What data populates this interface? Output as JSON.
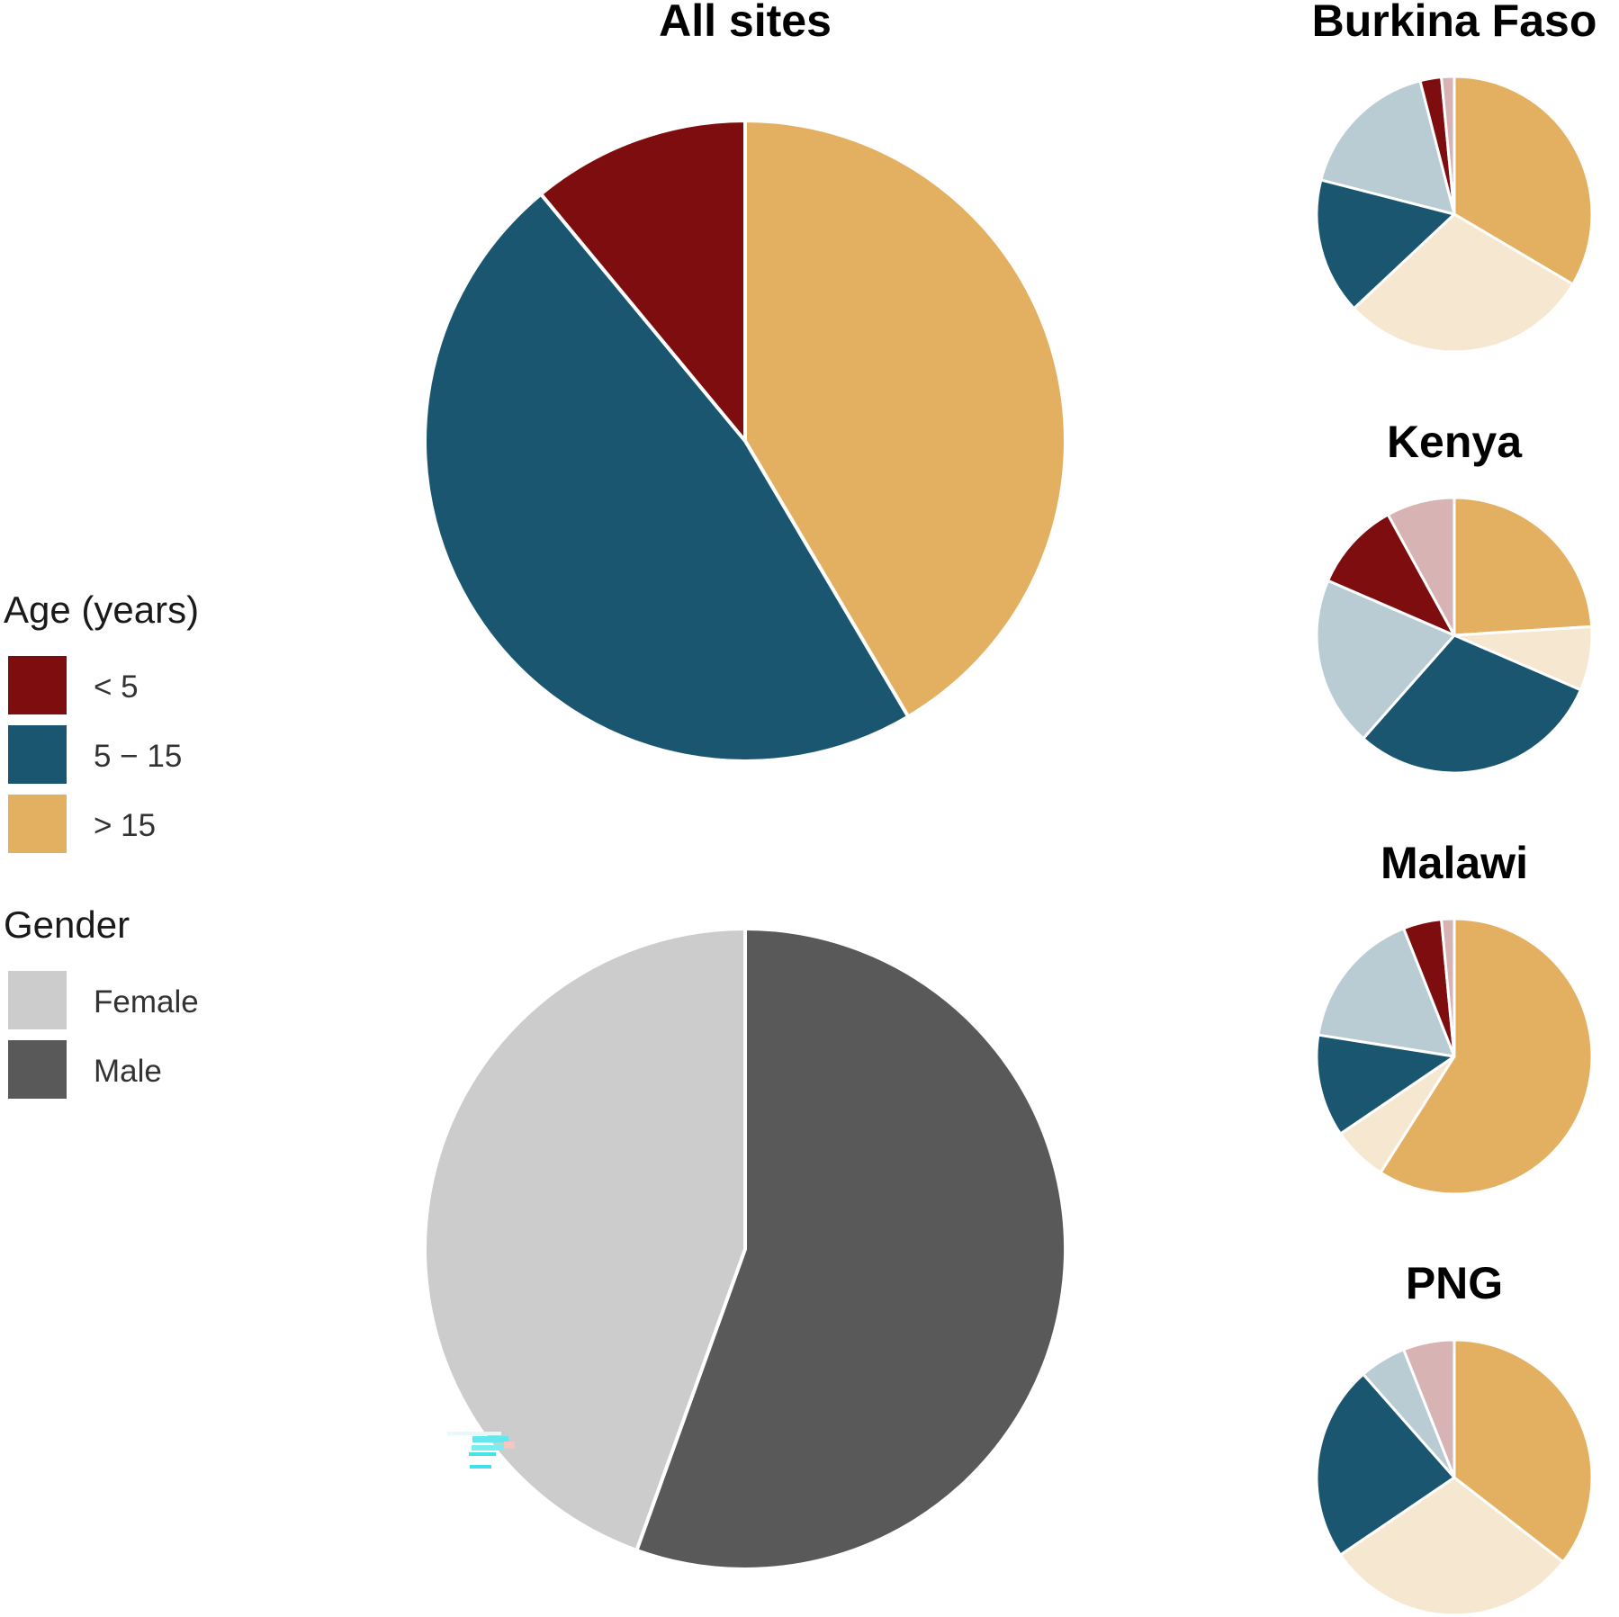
{
  "chart_data": [
    {
      "type": "pie",
      "title": "All sites",
      "slices": [
        {
          "key": "age_gt15",
          "label": "> 15",
          "value": 41.5
        },
        {
          "key": "age_5_15",
          "label": "5 - 15",
          "value": 47.5
        },
        {
          "key": "age_lt5",
          "label": "< 5",
          "value": 11.0
        }
      ]
    },
    {
      "type": "pie",
      "title": "",
      "slices": [
        {
          "key": "male",
          "label": "Male",
          "value": 55.5
        },
        {
          "key": "female",
          "label": "Female",
          "value": 44.5
        }
      ]
    },
    {
      "type": "pie",
      "title": "Burkina Faso",
      "slices": [
        {
          "key": "age_gt15_male",
          "value": 33.5
        },
        {
          "key": "age_gt15_female",
          "value": 29.5
        },
        {
          "key": "age_5_15_male",
          "value": 16.0
        },
        {
          "key": "age_5_15_female",
          "value": 17.0
        },
        {
          "key": "age_lt5_male",
          "value": 2.5
        },
        {
          "key": "age_lt5_female",
          "value": 1.5
        }
      ]
    },
    {
      "type": "pie",
      "title": "Kenya",
      "slices": [
        {
          "key": "age_gt15_male",
          "value": 24.0
        },
        {
          "key": "age_gt15_female",
          "value": 7.5
        },
        {
          "key": "age_5_15_male",
          "value": 30.0
        },
        {
          "key": "age_5_15_female",
          "value": 20.0
        },
        {
          "key": "age_lt5_male",
          "value": 10.5
        },
        {
          "key": "age_lt5_female",
          "value": 8.0
        }
      ]
    },
    {
      "type": "pie",
      "title": "Malawi",
      "slices": [
        {
          "key": "age_gt15_male",
          "value": 59.0
        },
        {
          "key": "age_gt15_female",
          "value": 6.5
        },
        {
          "key": "age_5_15_male",
          "value": 12.0
        },
        {
          "key": "age_5_15_female",
          "value": 16.5
        },
        {
          "key": "age_lt5_male",
          "value": 4.5
        },
        {
          "key": "age_lt5_female",
          "value": 1.5
        }
      ]
    },
    {
      "type": "pie",
      "title": "PNG",
      "slices": [
        {
          "key": "age_gt15_male",
          "value": 35.5
        },
        {
          "key": "age_gt15_female",
          "value": 30.0
        },
        {
          "key": "age_5_15_male",
          "value": 23.0
        },
        {
          "key": "age_5_15_female",
          "value": 5.5
        },
        {
          "key": "age_lt5_male",
          "value": 0.0
        },
        {
          "key": "age_lt5_female",
          "value": 6.0
        }
      ]
    }
  ],
  "colors": {
    "age_lt5_male": "#7e0d0f",
    "age_lt5_female": "#d8b3b4",
    "age_5_15_male": "#1a566f",
    "age_5_15_female": "#b9ccd4",
    "age_gt15_male": "#e3b062",
    "age_gt15_female": "#f6e7d0",
    "age_gt15": "#e3b062",
    "age_5_15": "#1a566f",
    "age_lt5": "#7e0d0f",
    "female": "#cccccc",
    "male": "#595959"
  },
  "legend": {
    "age": {
      "title": "Age (years)",
      "items": [
        {
          "key": "age_lt5",
          "label": "< 5"
        },
        {
          "key": "age_5_15",
          "label": "5 − 15"
        },
        {
          "key": "age_gt15",
          "label": "> 15"
        }
      ]
    },
    "gender": {
      "title": "Gender",
      "items": [
        {
          "key": "female",
          "label": "Female"
        },
        {
          "key": "male",
          "label": "Male"
        }
      ]
    }
  }
}
